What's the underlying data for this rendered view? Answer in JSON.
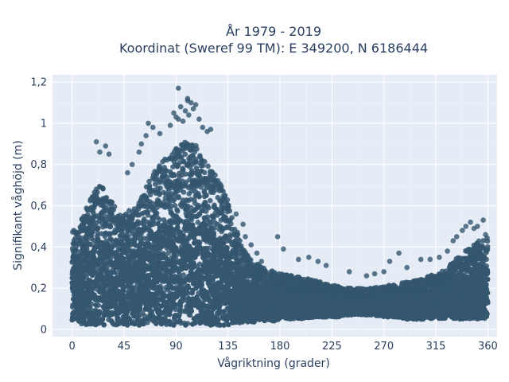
{
  "chart_data": {
    "type": "scatter",
    "title_lines": [
      "År 1979 - 2019",
      "Koordinat (Sweref 99 TM): E 349200, N 6186444"
    ],
    "xlabel": "Vågriktning (grader)",
    "ylabel": "Signifikant våghöjd (m)",
    "xlim": [
      -17,
      368
    ],
    "ylim": [
      -0.035,
      1.235
    ],
    "x_ticks": [
      0,
      45,
      90,
      135,
      180,
      225,
      270,
      315,
      360
    ],
    "x_tick_labels": [
      "0",
      "45",
      "90",
      "135",
      "180",
      "225",
      "270",
      "315",
      "360"
    ],
    "y_ticks": [
      0,
      0.2,
      0.4,
      0.6,
      0.8,
      1,
      1.2
    ],
    "y_tick_labels": [
      "0",
      "0,2",
      "0,4",
      "0,6",
      "0,8",
      "1",
      "1,2"
    ],
    "grid": true,
    "legend": "none",
    "marker_color": "#34566f",
    "plot_background": "#e5ecf6",
    "envelope": {
      "x": [
        0,
        5,
        10,
        15,
        20,
        25,
        30,
        35,
        40,
        45,
        50,
        55,
        60,
        65,
        70,
        75,
        80,
        85,
        90,
        95,
        100,
        105,
        110,
        115,
        120,
        125,
        130,
        135,
        140,
        145,
        150,
        155,
        160,
        165,
        170,
        175,
        180,
        190,
        200,
        210,
        220,
        230,
        240,
        250,
        260,
        270,
        280,
        290,
        300,
        310,
        320,
        325,
        330,
        335,
        340,
        345,
        350,
        355,
        360
      ],
      "upper": [
        0.48,
        0.5,
        0.56,
        0.62,
        0.68,
        0.72,
        0.66,
        0.62,
        0.58,
        0.56,
        0.58,
        0.6,
        0.64,
        0.7,
        0.76,
        0.8,
        0.83,
        0.86,
        0.88,
        0.9,
        0.92,
        0.9,
        0.88,
        0.84,
        0.78,
        0.74,
        0.7,
        0.64,
        0.52,
        0.44,
        0.38,
        0.34,
        0.32,
        0.3,
        0.29,
        0.28,
        0.27,
        0.26,
        0.25,
        0.24,
        0.22,
        0.21,
        0.2,
        0.2,
        0.2,
        0.21,
        0.22,
        0.23,
        0.24,
        0.26,
        0.28,
        0.3,
        0.33,
        0.36,
        0.38,
        0.4,
        0.42,
        0.44,
        0.45
      ],
      "lower": [
        0.04,
        0.03,
        0.02,
        0.02,
        0.02,
        0.02,
        0.02,
        0.02,
        0.02,
        0.02,
        0.02,
        0.02,
        0.02,
        0.02,
        0.02,
        0.02,
        0.02,
        0.02,
        0.02,
        0.02,
        0.02,
        0.02,
        0.02,
        0.02,
        0.02,
        0.02,
        0.02,
        0.02,
        0.03,
        0.03,
        0.03,
        0.03,
        0.04,
        0.04,
        0.04,
        0.04,
        0.05,
        0.05,
        0.05,
        0.06,
        0.06,
        0.06,
        0.07,
        0.07,
        0.07,
        0.06,
        0.06,
        0.05,
        0.05,
        0.05,
        0.05,
        0.05,
        0.05,
        0.05,
        0.05,
        0.05,
        0.05,
        0.05,
        0.05
      ]
    },
    "outliers": [
      {
        "x": 21,
        "y": 0.91
      },
      {
        "x": 24,
        "y": 0.86
      },
      {
        "x": 29,
        "y": 0.89
      },
      {
        "x": 32,
        "y": 0.85
      },
      {
        "x": 48,
        "y": 0.76
      },
      {
        "x": 52,
        "y": 0.8
      },
      {
        "x": 58,
        "y": 0.86
      },
      {
        "x": 60,
        "y": 0.9
      },
      {
        "x": 64,
        "y": 0.94
      },
      {
        "x": 66,
        "y": 1.0
      },
      {
        "x": 70,
        "y": 0.98
      },
      {
        "x": 76,
        "y": 0.95
      },
      {
        "x": 85,
        "y": 0.99
      },
      {
        "x": 88,
        "y": 1.05
      },
      {
        "x": 90,
        "y": 1.03
      },
      {
        "x": 92,
        "y": 1.02
      },
      {
        "x": 94,
        "y": 1.08
      },
      {
        "x": 96,
        "y": 1.01
      },
      {
        "x": 98,
        "y": 1.06
      },
      {
        "x": 100,
        "y": 1.11
      },
      {
        "x": 101,
        "y": 1.04
      },
      {
        "x": 103,
        "y": 1.1
      },
      {
        "x": 105,
        "y": 1.07
      },
      {
        "x": 107,
        "y": 1.09
      },
      {
        "x": 110,
        "y": 1.02
      },
      {
        "x": 113,
        "y": 0.98
      },
      {
        "x": 117,
        "y": 0.96
      },
      {
        "x": 120,
        "y": 0.97
      },
      {
        "x": 92,
        "y": 1.17
      },
      {
        "x": 100,
        "y": 1.12
      },
      {
        "x": 142,
        "y": 0.56
      },
      {
        "x": 148,
        "y": 0.51
      },
      {
        "x": 150,
        "y": 0.45
      },
      {
        "x": 155,
        "y": 0.41
      },
      {
        "x": 160,
        "y": 0.37
      },
      {
        "x": 164,
        "y": 0.33
      },
      {
        "x": 178,
        "y": 0.45
      },
      {
        "x": 183,
        "y": 0.39
      },
      {
        "x": 196,
        "y": 0.34
      },
      {
        "x": 205,
        "y": 0.35
      },
      {
        "x": 213,
        "y": 0.33
      },
      {
        "x": 220,
        "y": 0.31
      },
      {
        "x": 240,
        "y": 0.28
      },
      {
        "x": 255,
        "y": 0.26
      },
      {
        "x": 262,
        "y": 0.27
      },
      {
        "x": 270,
        "y": 0.28
      },
      {
        "x": 275,
        "y": 0.33
      },
      {
        "x": 283,
        "y": 0.37
      },
      {
        "x": 290,
        "y": 0.3
      },
      {
        "x": 302,
        "y": 0.34
      },
      {
        "x": 310,
        "y": 0.34
      },
      {
        "x": 318,
        "y": 0.35
      },
      {
        "x": 325,
        "y": 0.38
      },
      {
        "x": 330,
        "y": 0.43
      },
      {
        "x": 333,
        "y": 0.45
      },
      {
        "x": 338,
        "y": 0.48
      },
      {
        "x": 341,
        "y": 0.5
      },
      {
        "x": 345,
        "y": 0.52
      },
      {
        "x": 348,
        "y": 0.49
      },
      {
        "x": 351,
        "y": 0.5
      },
      {
        "x": 356,
        "y": 0.53
      },
      {
        "x": 358,
        "y": 0.46
      }
    ]
  }
}
